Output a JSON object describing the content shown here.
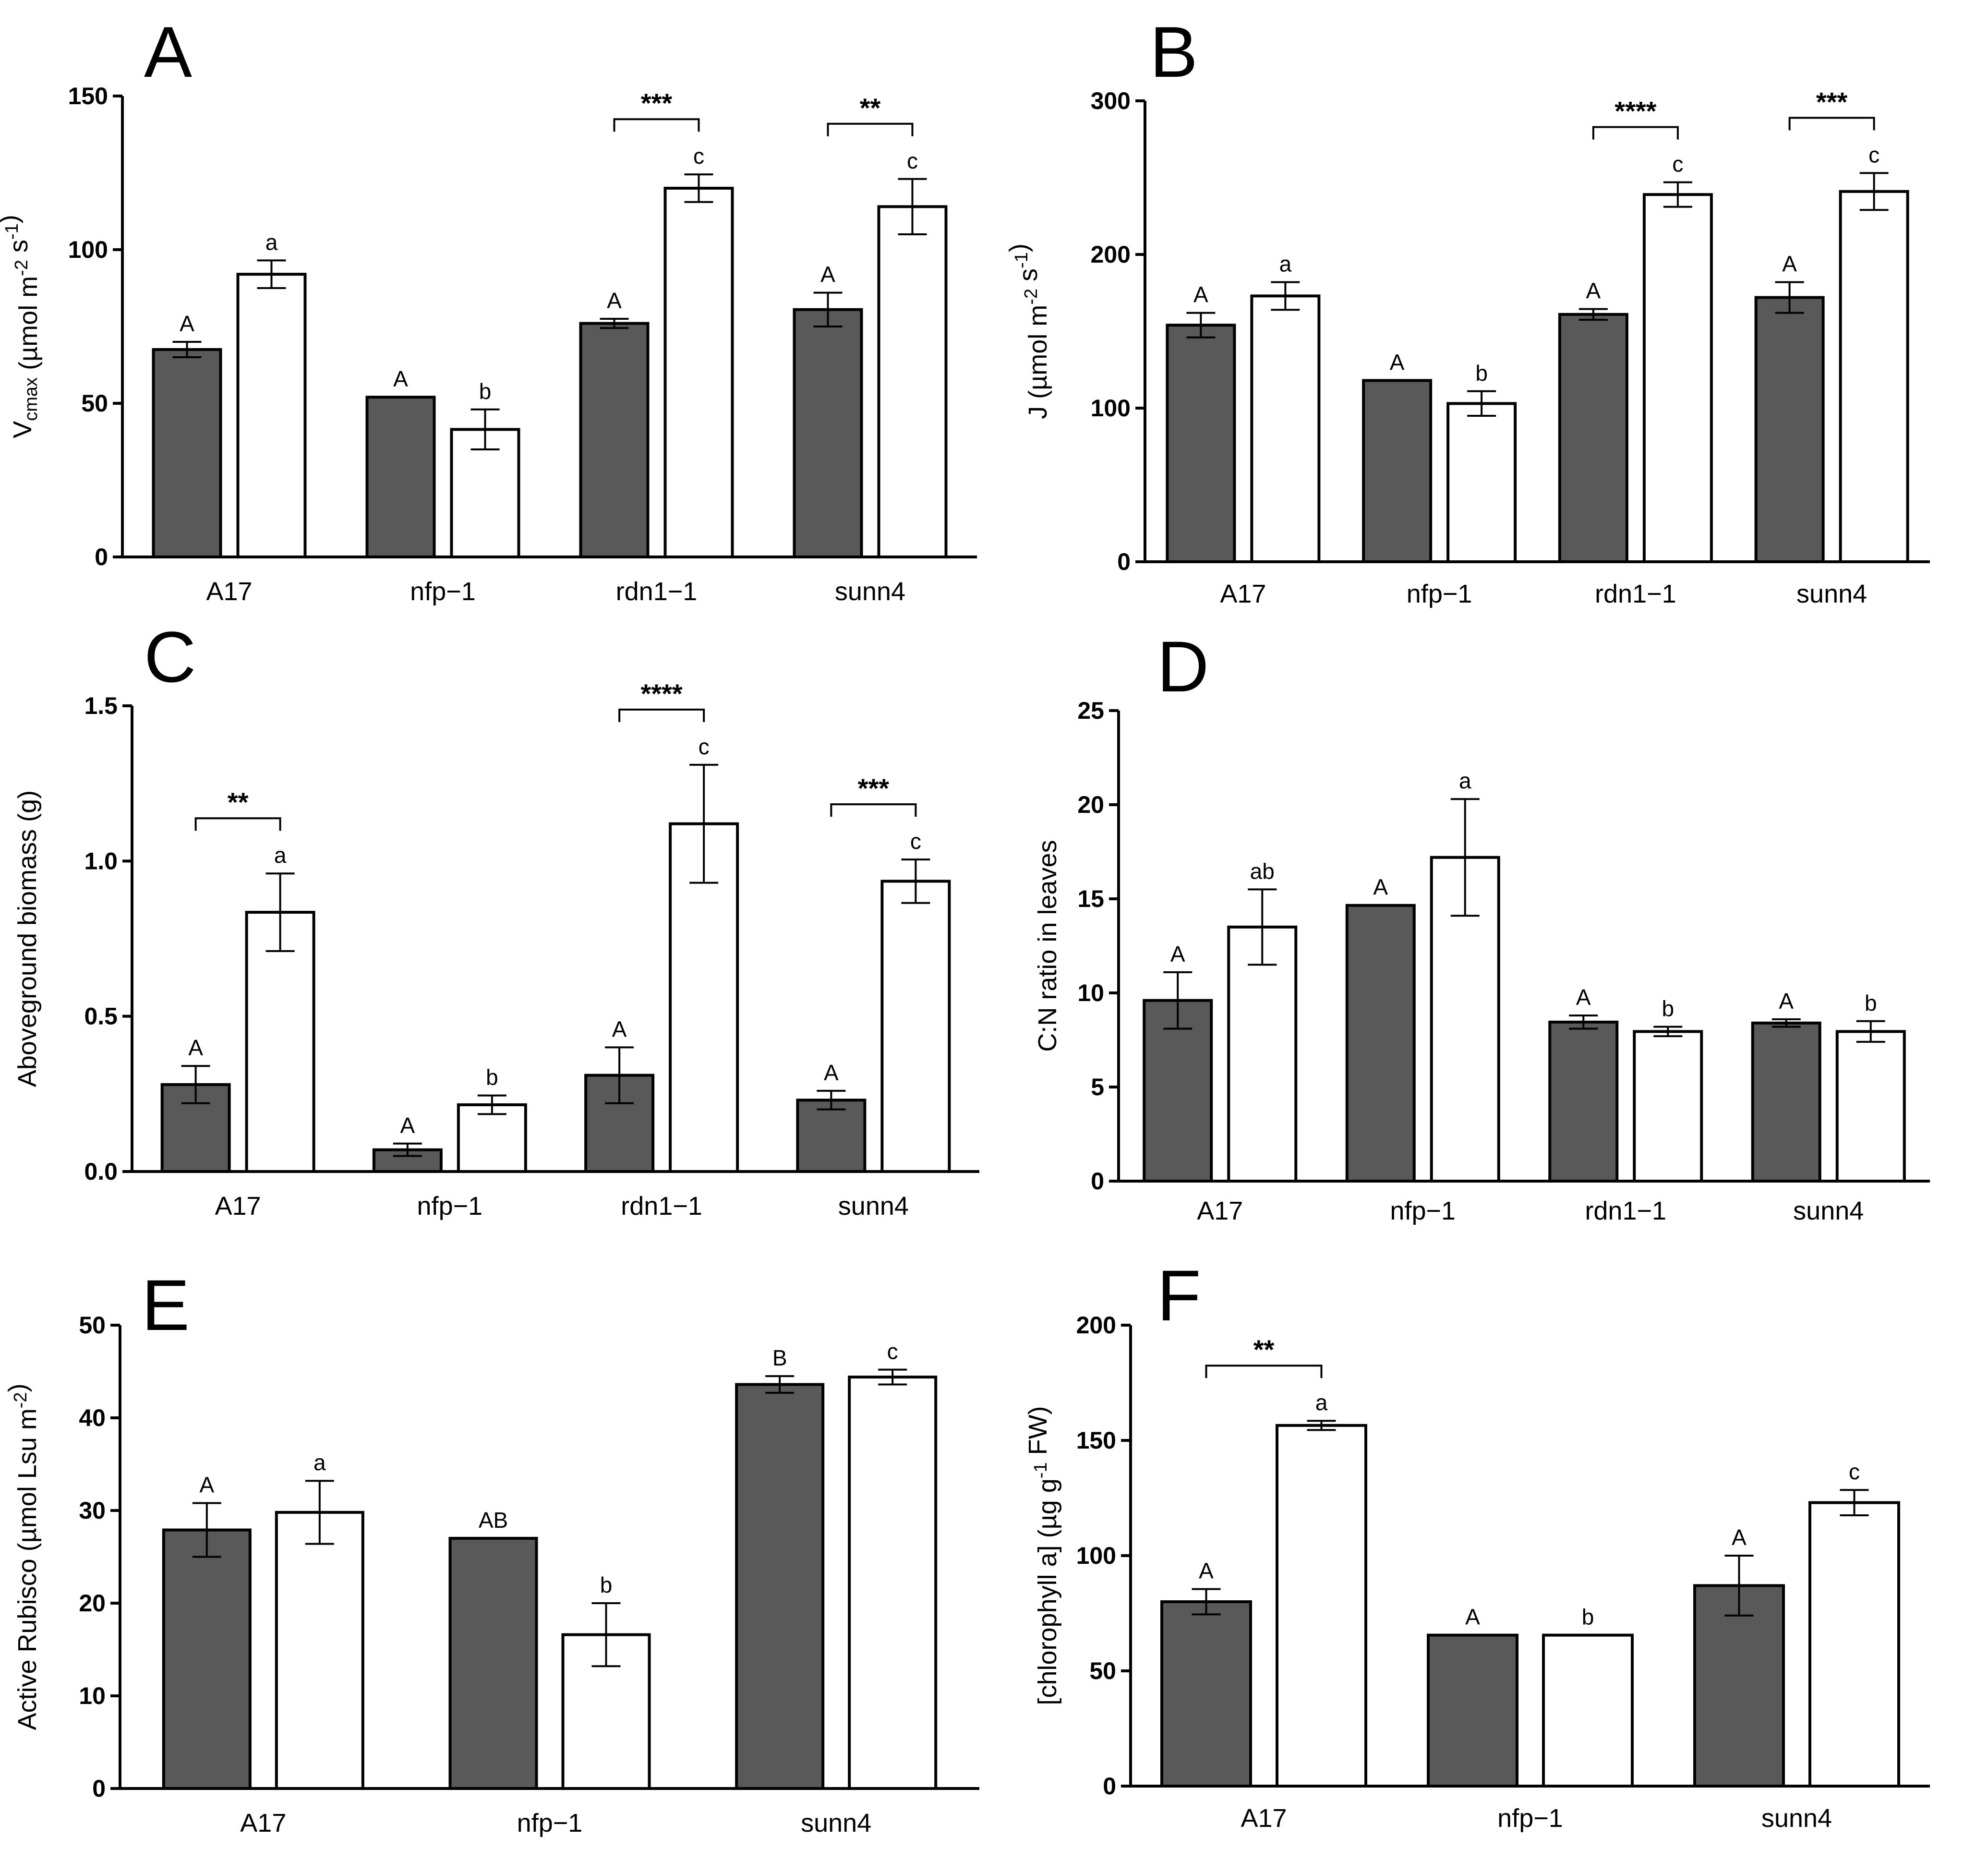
{
  "colors": {
    "dark_bar": "#595959",
    "light_bar": "#ffffff",
    "stroke": "#000000"
  },
  "chart_data": [
    {
      "type": "bar",
      "panel": "A",
      "categories": [
        "A17",
        "nfp−1",
        "rdn1−1",
        "sunn4"
      ],
      "ylabel_parts": [
        [
          "V",
          ""
        ],
        [
          "cmax",
          "sub"
        ],
        [
          " (µmol m",
          ""
        ],
        [
          "-2",
          "sup"
        ],
        [
          " s",
          ""
        ],
        [
          "-1",
          "sup"
        ],
        [
          ")",
          ""
        ]
      ],
      "ylim": [
        0,
        150
      ],
      "yticks": [
        0,
        50,
        100,
        150
      ],
      "tick_labels": [
        "0",
        "50",
        "100",
        "150"
      ],
      "series": [
        {
          "name": "dark",
          "values": [
            67.5,
            52,
            76,
            80.5
          ],
          "errors": [
            2.5,
            0,
            1.5,
            5.5
          ],
          "labels": [
            "A",
            "A",
            "A",
            "A"
          ]
        },
        {
          "name": "white",
          "values": [
            92,
            41.5,
            120,
            114
          ],
          "errors": [
            4.5,
            6.5,
            4.5,
            9
          ],
          "labels": [
            "a",
            "b",
            "c",
            "c"
          ]
        }
      ],
      "significance": [
        {
          "category_index": 2,
          "text": "***"
        },
        {
          "category_index": 3,
          "text": "**"
        }
      ]
    },
    {
      "type": "bar",
      "panel": "B",
      "categories": [
        "A17",
        "nfp−1",
        "rdn1−1",
        "sunn4"
      ],
      "ylabel_parts": [
        [
          "J (µmol m",
          ""
        ],
        [
          "-2",
          "sup"
        ],
        [
          " s",
          ""
        ],
        [
          "-1",
          "sup"
        ],
        [
          ")",
          ""
        ]
      ],
      "ylim": [
        0,
        300
      ],
      "yticks": [
        0,
        100,
        200,
        300
      ],
      "tick_labels": [
        "0",
        "100",
        "200",
        "300"
      ],
      "series": [
        {
          "name": "dark",
          "values": [
            154,
            118,
            161,
            172
          ],
          "errors": [
            8,
            0,
            3.5,
            10
          ],
          "labels": [
            "A",
            "A",
            "A",
            "A"
          ]
        },
        {
          "name": "white",
          "values": [
            173,
            103,
            239,
            241
          ],
          "errors": [
            9,
            8,
            8,
            12
          ],
          "labels": [
            "a",
            "b",
            "c",
            "c"
          ]
        }
      ],
      "significance": [
        {
          "category_index": 2,
          "text": "****"
        },
        {
          "category_index": 3,
          "text": "***"
        }
      ]
    },
    {
      "type": "bar",
      "panel": "C",
      "categories": [
        "A17",
        "nfp−1",
        "rdn1−1",
        "sunn4"
      ],
      "ylabel_parts": [
        [
          "Aboveground biomass (g)",
          ""
        ]
      ],
      "ylim": [
        0,
        1.5
      ],
      "yticks": [
        0,
        0.5,
        1.0,
        1.5
      ],
      "tick_labels": [
        "0.0",
        "0.5",
        "1.0",
        "1.5"
      ],
      "series": [
        {
          "name": "dark",
          "values": [
            0.28,
            0.07,
            0.31,
            0.23
          ],
          "errors": [
            0.06,
            0.02,
            0.09,
            0.03
          ],
          "labels": [
            "A",
            "A",
            "A",
            "A"
          ]
        },
        {
          "name": "white",
          "values": [
            0.835,
            0.215,
            1.12,
            0.935
          ],
          "errors": [
            0.125,
            0.03,
            0.19,
            0.07
          ],
          "labels": [
            "a",
            "b",
            "c",
            "c"
          ]
        }
      ],
      "significance": [
        {
          "category_index": 0,
          "text": "**"
        },
        {
          "category_index": 2,
          "text": "****"
        },
        {
          "category_index": 3,
          "text": "***"
        }
      ]
    },
    {
      "type": "bar",
      "panel": "D",
      "categories": [
        "A17",
        "nfp−1",
        "rdn1−1",
        "sunn4"
      ],
      "ylabel_parts": [
        [
          "C:N ratio in leaves",
          ""
        ]
      ],
      "ylim": [
        0,
        25
      ],
      "yticks": [
        0,
        5,
        10,
        15,
        20,
        25
      ],
      "tick_labels": [
        "0",
        "5",
        "10",
        "15",
        "20",
        "25"
      ],
      "series": [
        {
          "name": "dark",
          "values": [
            9.6,
            14.65,
            8.45,
            8.4
          ],
          "errors": [
            1.5,
            0,
            0.35,
            0.2
          ],
          "labels": [
            "A",
            "A",
            "A",
            "A"
          ]
        },
        {
          "name": "white",
          "values": [
            13.5,
            17.2,
            7.95,
            7.95
          ],
          "errors": [
            2,
            3.1,
            0.25,
            0.55
          ],
          "labels": [
            "ab",
            "a",
            "b",
            "b"
          ]
        }
      ],
      "significance": []
    },
    {
      "type": "bar",
      "panel": "E",
      "categories": [
        "A17",
        "nfp−1",
        "sunn4"
      ],
      "ylabel_parts": [
        [
          "Active Rubisco (µmol Lsu m",
          ""
        ],
        [
          "-2",
          "sup"
        ],
        [
          ")",
          ""
        ]
      ],
      "ylim": [
        0,
        50
      ],
      "yticks": [
        0,
        10,
        20,
        30,
        40,
        50
      ],
      "tick_labels": [
        "0",
        "10",
        "20",
        "30",
        "40",
        "50"
      ],
      "series": [
        {
          "name": "dark",
          "values": [
            27.9,
            27,
            43.6
          ],
          "errors": [
            2.9,
            0,
            0.9
          ],
          "labels": [
            "A",
            "AB",
            "B"
          ]
        },
        {
          "name": "white",
          "values": [
            29.8,
            16.6,
            44.4
          ],
          "errors": [
            3.4,
            3.4,
            0.8
          ],
          "labels": [
            "a",
            "b",
            "c"
          ]
        }
      ],
      "significance": []
    },
    {
      "type": "bar",
      "panel": "F",
      "categories": [
        "A17",
        "nfp−1",
        "sunn4"
      ],
      "ylabel_parts": [
        [
          "[chlorophyll a]  (µg g",
          ""
        ],
        [
          "-1",
          "sup"
        ],
        [
          " FW)",
          ""
        ]
      ],
      "ylim": [
        0,
        200
      ],
      "yticks": [
        0,
        50,
        100,
        150,
        200
      ],
      "tick_labels": [
        "0",
        "50",
        "100",
        "150",
        "200"
      ],
      "series": [
        {
          "name": "dark",
          "values": [
            80,
            65.5,
            87
          ],
          "errors": [
            5.5,
            0,
            13
          ],
          "labels": [
            "A",
            "A",
            "A"
          ]
        },
        {
          "name": "white",
          "values": [
            156.5,
            65.5,
            123
          ],
          "errors": [
            2,
            0,
            5.5
          ],
          "labels": [
            "a",
            "b",
            "c"
          ]
        }
      ],
      "significance": [
        {
          "category_index": 0,
          "text": "**"
        }
      ]
    }
  ]
}
